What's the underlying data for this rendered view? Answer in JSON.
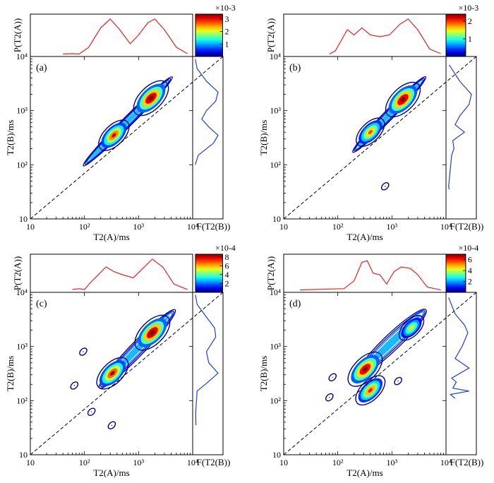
{
  "chart_data": [
    {
      "type": "2D-contour",
      "panel_label": "(a)",
      "xlabel": "T2(A)/ms",
      "ylabel": "T2(B)/ms",
      "top_label": "P(T2(A))",
      "side_label": "F(T2(B))",
      "x_range": [
        10,
        10000
      ],
      "y_range": [
        10,
        10000
      ],
      "x_ticks": [
        "10",
        "10²",
        "10³",
        "10⁴"
      ],
      "y_ticks": [
        "10",
        "10²",
        "10³",
        "10⁴"
      ],
      "colorbar": {
        "multiplier": "×10-3",
        "ticks": [
          "1",
          "2",
          "3"
        ],
        "min": 0,
        "max": 3.4
      },
      "contours": [
        {
          "kind": "ridge",
          "from": [
            100,
            100
          ],
          "to": [
            4000,
            4000
          ],
          "width": 0.09
        },
        {
          "kind": "peak",
          "at": [
            350,
            350
          ],
          "value": 2.6
        },
        {
          "kind": "peak",
          "at": [
            1700,
            1700
          ],
          "value": 3.3
        }
      ],
      "top_profile": [
        [
          40,
          0.01
        ],
        [
          60,
          0.02
        ],
        [
          80,
          0.01
        ],
        [
          120,
          0.2
        ],
        [
          200,
          0.75
        ],
        [
          300,
          1.0
        ],
        [
          450,
          0.7
        ],
        [
          700,
          0.3
        ],
        [
          1000,
          0.55
        ],
        [
          1500,
          0.9
        ],
        [
          2000,
          1.0
        ],
        [
          3000,
          0.7
        ],
        [
          5000,
          0.2
        ],
        [
          8000,
          0.02
        ]
      ],
      "side_profile": [
        [
          100,
          0.02
        ],
        [
          150,
          0.15
        ],
        [
          250,
          0.8
        ],
        [
          350,
          1.0
        ],
        [
          500,
          0.6
        ],
        [
          700,
          0.3
        ],
        [
          1000,
          0.5
        ],
        [
          1500,
          0.9
        ],
        [
          2200,
          1.0
        ],
        [
          3500,
          0.5
        ],
        [
          6000,
          0.1
        ],
        [
          9000,
          0.02
        ]
      ]
    },
    {
      "type": "2D-contour",
      "panel_label": "(b)",
      "xlabel": "T2(A)/ms",
      "ylabel": "T2(B)/ms",
      "top_label": "P(T2(A))",
      "side_label": "F(T2(B))",
      "x_range": [
        10,
        10000
      ],
      "y_range": [
        10,
        10000
      ],
      "x_ticks": [
        "10",
        "10²",
        "10³",
        "10⁴"
      ],
      "y_ticks": [
        "10",
        "10²",
        "10³",
        "10⁴"
      ],
      "colorbar": {
        "multiplier": "×10-3",
        "ticks": [
          "1",
          "2"
        ],
        "min": 0,
        "max": 2.4
      },
      "contours": [
        {
          "kind": "ridge",
          "from": [
            200,
            180
          ],
          "to": [
            4000,
            4000
          ],
          "width": 0.09
        },
        {
          "kind": "peak",
          "at": [
            400,
            400
          ],
          "value": 1.6
        },
        {
          "kind": "peak",
          "at": [
            1600,
            1600
          ],
          "value": 2.3
        },
        {
          "kind": "island",
          "at": [
            750,
            40
          ],
          "value": 0.3
        }
      ],
      "top_profile": [
        [
          70,
          0.01
        ],
        [
          90,
          0.1
        ],
        [
          150,
          0.7
        ],
        [
          200,
          0.55
        ],
        [
          280,
          0.75
        ],
        [
          400,
          0.55
        ],
        [
          600,
          0.5
        ],
        [
          900,
          0.55
        ],
        [
          1400,
          0.85
        ],
        [
          2000,
          1.0
        ],
        [
          3000,
          0.7
        ],
        [
          5000,
          0.15
        ],
        [
          8000,
          0.02
        ]
      ],
      "side_profile": [
        [
          35,
          0.05
        ],
        [
          40,
          0.02
        ],
        [
          150,
          0.15
        ],
        [
          200,
          0.25
        ],
        [
          280,
          0.2
        ],
        [
          400,
          0.7
        ],
        [
          550,
          0.3
        ],
        [
          800,
          0.5
        ],
        [
          1300,
          0.9
        ],
        [
          2000,
          1.0
        ],
        [
          3500,
          0.5
        ],
        [
          7000,
          0.05
        ]
      ]
    },
    {
      "type": "2D-contour",
      "panel_label": "(c)",
      "xlabel": "T2(A)/ms",
      "ylabel": "T2(B)/ms",
      "top_label": "P(T2(A))",
      "side_label": "F(T2(B))",
      "x_range": [
        10,
        10000
      ],
      "y_range": [
        10,
        10000
      ],
      "x_ticks": [
        "10",
        "10²",
        "10³",
        "10⁴"
      ],
      "y_ticks": [
        "10",
        "10²",
        "10³",
        "10⁴"
      ],
      "colorbar": {
        "multiplier": "×10-4",
        "ticks": [
          "2",
          "4",
          "6",
          "8"
        ],
        "min": 0,
        "max": 8.6
      },
      "contours": [
        {
          "kind": "ridge",
          "from": [
            200,
            180
          ],
          "to": [
            4500,
            4500
          ],
          "width": 0.13
        },
        {
          "kind": "peak",
          "at": [
            330,
            320
          ],
          "value": 7.0
        },
        {
          "kind": "peak",
          "at": [
            1800,
            1800
          ],
          "value": 8.4
        },
        {
          "kind": "island",
          "at": [
            95,
            800
          ],
          "value": 1.0
        },
        {
          "kind": "island",
          "at": [
            65,
            190
          ],
          "value": 1.2
        },
        {
          "kind": "island",
          "at": [
            135,
            62
          ],
          "value": 1.3
        },
        {
          "kind": "island",
          "at": [
            320,
            35
          ],
          "value": 1.1
        }
      ],
      "top_profile": [
        [
          60,
          0.02
        ],
        [
          80,
          0.05
        ],
        [
          100,
          0.02
        ],
        [
          130,
          0.25
        ],
        [
          170,
          0.45
        ],
        [
          250,
          0.75
        ],
        [
          350,
          0.6
        ],
        [
          500,
          0.5
        ],
        [
          800,
          0.4
        ],
        [
          1200,
          0.7
        ],
        [
          1800,
          1.0
        ],
        [
          2800,
          0.75
        ],
        [
          4500,
          0.2
        ],
        [
          8000,
          0.02
        ]
      ],
      "side_profile": [
        [
          35,
          0.05
        ],
        [
          60,
          0.04
        ],
        [
          150,
          0.1
        ],
        [
          200,
          0.45
        ],
        [
          320,
          1.0
        ],
        [
          500,
          0.6
        ],
        [
          800,
          0.5
        ],
        [
          1500,
          0.9
        ],
        [
          2200,
          0.85
        ],
        [
          3500,
          0.5
        ],
        [
          6000,
          0.1
        ],
        [
          9000,
          0.03
        ]
      ]
    },
    {
      "type": "2D-contour",
      "panel_label": "(d)",
      "xlabel": "T2(A)/ms",
      "ylabel": "T2(B)/ms",
      "top_label": "P(T2(A))",
      "side_label": "F(T2(B))",
      "x_range": [
        10,
        10000
      ],
      "y_range": [
        10,
        10000
      ],
      "x_ticks": [
        "10",
        "10²",
        "10³",
        "10⁴"
      ],
      "y_ticks": [
        "10",
        "10²",
        "10³",
        "10⁴"
      ],
      "colorbar": {
        "multiplier": "×10-4",
        "ticks": [
          "2",
          "4",
          "6"
        ],
        "min": 0,
        "max": 7.0
      },
      "contours": [
        {
          "kind": "ridge",
          "from": [
            250,
            320
          ],
          "to": [
            4000,
            4500
          ],
          "width": 0.15
        },
        {
          "kind": "peak",
          "at": [
            320,
            380
          ],
          "value": 6.6
        },
        {
          "kind": "peak",
          "at": [
            2300,
            2200
          ],
          "value": 3.5
        },
        {
          "kind": "peak",
          "at": [
            400,
            155
          ],
          "value": 5.0
        },
        {
          "kind": "island",
          "at": [
            80,
            270
          ],
          "value": 1.0
        },
        {
          "kind": "island",
          "at": [
            70,
            115
          ],
          "value": 1.0
        },
        {
          "kind": "island",
          "at": [
            1300,
            230
          ],
          "value": 0.9
        }
      ],
      "top_profile": [
        [
          20,
          0.01
        ],
        [
          80,
          0.04
        ],
        [
          130,
          0.05
        ],
        [
          200,
          0.3
        ],
        [
          280,
          0.9
        ],
        [
          350,
          0.95
        ],
        [
          450,
          0.55
        ],
        [
          600,
          0.5
        ],
        [
          800,
          0.2
        ],
        [
          1100,
          0.6
        ],
        [
          1500,
          0.75
        ],
        [
          2200,
          0.7
        ],
        [
          3000,
          0.5
        ],
        [
          4500,
          0.1
        ],
        [
          8000,
          0.01
        ]
      ],
      "side_profile": [
        [
          110,
          0.3
        ],
        [
          130,
          0.1
        ],
        [
          150,
          0.9
        ],
        [
          170,
          0.2
        ],
        [
          220,
          0.35
        ],
        [
          260,
          0.15
        ],
        [
          400,
          0.9
        ],
        [
          600,
          0.3
        ],
        [
          1000,
          0.6
        ],
        [
          1800,
          0.85
        ],
        [
          2500,
          0.7
        ],
        [
          4000,
          0.3
        ],
        [
          8000,
          0.02
        ]
      ]
    }
  ]
}
